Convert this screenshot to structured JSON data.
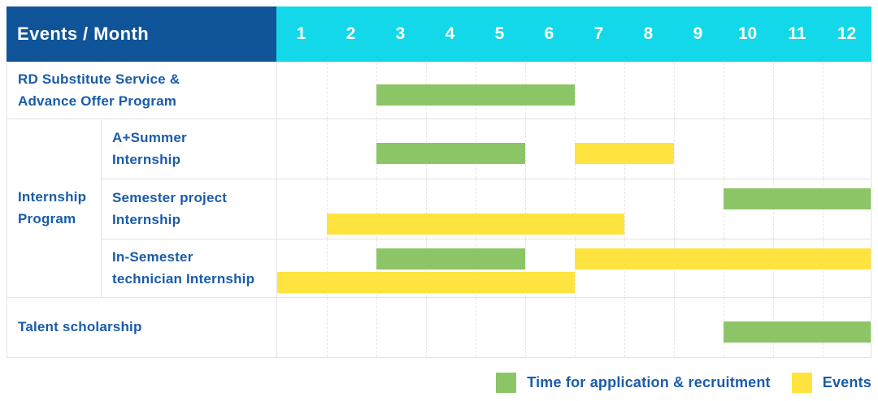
{
  "title": "Events / Month",
  "colors": {
    "header_bg": "#0F5499",
    "month_header_bg": "#12D8EA",
    "green": "#8BC566",
    "yellow": "#FFE33E",
    "label_text": "#1A5CA8",
    "grid_line": "#E3E3E3"
  },
  "group_label": "Internship\nProgram",
  "chart_data": {
    "type": "bar",
    "subtype": "gantt-schedule",
    "title": "Events / Month",
    "x": {
      "label": "Month",
      "ticks": [
        "1",
        "2",
        "3",
        "4",
        "5",
        "6",
        "7",
        "8",
        "9",
        "10",
        "11",
        "12"
      ],
      "range": [
        1,
        12
      ]
    },
    "grid": "vertical-dashed",
    "legend_position": "bottom-right",
    "legend": [
      {
        "key": "application",
        "label": "Time for application & recruitment",
        "color": "#8BC566"
      },
      {
        "key": "events",
        "label": "Events",
        "color": "#FFE33E"
      }
    ],
    "rows": [
      {
        "label": "RD Substitute Service &\nAdvance Offer Program",
        "group": "",
        "bars": [
          {
            "series": "application",
            "start_month": 3,
            "end_month": 6,
            "track": "single"
          }
        ]
      },
      {
        "label": "A+Summer\nInternship",
        "group": "Internship Program",
        "bars": [
          {
            "series": "application",
            "start_month": 3,
            "end_month": 5,
            "track": "single"
          },
          {
            "series": "events",
            "start_month": 7,
            "end_month": 8,
            "track": "single"
          }
        ]
      },
      {
        "label": "Semester project\nInternship",
        "group": "Internship Program",
        "bars": [
          {
            "series": "application",
            "start_month": 10,
            "end_month": 12,
            "track": "top"
          },
          {
            "series": "events",
            "start_month": 2,
            "end_month": 7,
            "track": "bottom"
          }
        ]
      },
      {
        "label": "In-Semester\ntechnician Internship",
        "group": "Internship Program",
        "bars": [
          {
            "series": "application",
            "start_month": 3,
            "end_month": 5,
            "track": "top"
          },
          {
            "series": "events",
            "start_month": 7,
            "end_month": 12,
            "track": "top"
          },
          {
            "series": "events",
            "start_month": 1,
            "end_month": 6,
            "track": "bottom"
          }
        ]
      },
      {
        "label": "Talent scholarship",
        "group": "",
        "bars": [
          {
            "series": "application",
            "start_month": 10,
            "end_month": 12,
            "track": "single"
          }
        ]
      }
    ]
  }
}
